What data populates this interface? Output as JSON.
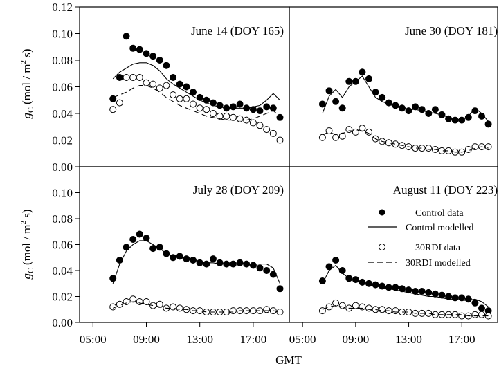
{
  "figure": {
    "xlabel": "GMT",
    "ylabel_var": "g",
    "ylabel_sub": "C",
    "ylabel_unit_pre": "(mol / m",
    "ylabel_unit_sup": "2",
    "ylabel_unit_post": " s)"
  },
  "legend": {
    "control_data": "Control data",
    "control_modelled": "Control modelled",
    "rdi_data": "30RDI data",
    "rdi_modelled": "30RDI modelled"
  },
  "chart_data": [
    {
      "type": "scatter",
      "title": "June 14 (DOY 165)",
      "x_unit": "hour GMT",
      "xlim": [
        4.0,
        19.7
      ],
      "ylim": [
        0,
        0.12
      ],
      "yticks": [
        "0.00",
        "0.02",
        "0.04",
        "0.06",
        "0.08",
        "0.10",
        "0.12"
      ],
      "series": [
        {
          "name": "Control data",
          "x": [
            6.5,
            7.0,
            7.5,
            8.0,
            8.5,
            9.0,
            9.5,
            10.0,
            10.5,
            11.0,
            11.5,
            12.0,
            12.5,
            13.0,
            13.5,
            14.0,
            14.5,
            15.0,
            15.5,
            16.0,
            16.5,
            17.0,
            17.5,
            18.0,
            18.5,
            19.0
          ],
          "y": [
            0.051,
            0.067,
            0.098,
            0.089,
            0.088,
            0.085,
            0.083,
            0.08,
            0.076,
            0.067,
            0.062,
            0.06,
            0.056,
            0.052,
            0.05,
            0.048,
            0.046,
            0.044,
            0.045,
            0.047,
            0.044,
            0.043,
            0.042,
            0.045,
            0.044,
            0.037
          ]
        },
        {
          "name": "Control modelled",
          "x": [
            6.5,
            7.0,
            7.5,
            8.0,
            8.5,
            9.0,
            9.5,
            10.0,
            10.5,
            11.0,
            11.5,
            12.0,
            12.5,
            13.0,
            13.5,
            14.0,
            14.5,
            15.0,
            15.5,
            16.0,
            16.5,
            17.0,
            17.5,
            18.0,
            18.5,
            19.0
          ],
          "y": [
            0.066,
            0.071,
            0.074,
            0.077,
            0.078,
            0.078,
            0.076,
            0.072,
            0.066,
            0.062,
            0.059,
            0.056,
            0.053,
            0.05,
            0.048,
            0.046,
            0.045,
            0.044,
            0.044,
            0.044,
            0.044,
            0.045,
            0.046,
            0.05,
            0.055,
            0.05
          ]
        },
        {
          "name": "30RDI data",
          "x": [
            6.5,
            7.0,
            7.5,
            8.0,
            8.5,
            9.0,
            9.5,
            10.0,
            10.5,
            11.0,
            11.5,
            12.0,
            12.5,
            13.0,
            13.5,
            14.0,
            14.5,
            15.0,
            15.5,
            16.0,
            16.5,
            17.0,
            17.5,
            18.0,
            18.5,
            19.0
          ],
          "y": [
            0.043,
            0.048,
            0.067,
            0.067,
            0.067,
            0.063,
            0.062,
            0.059,
            0.061,
            0.054,
            0.051,
            0.051,
            0.047,
            0.044,
            0.043,
            0.04,
            0.038,
            0.038,
            0.037,
            0.036,
            0.035,
            0.033,
            0.031,
            0.028,
            0.025,
            0.02
          ]
        },
        {
          "name": "30RDI modelled",
          "x": [
            6.5,
            7.0,
            7.5,
            8.0,
            8.5,
            9.0,
            9.5,
            10.0,
            10.5,
            11.0,
            11.5,
            12.0,
            12.5,
            13.0,
            13.5,
            14.0,
            14.5,
            15.0,
            15.5,
            16.0,
            16.5,
            17.0,
            17.5,
            18.0,
            18.5,
            19.0
          ],
          "y": [
            0.052,
            0.054,
            0.056,
            0.059,
            0.061,
            0.061,
            0.059,
            0.056,
            0.052,
            0.049,
            0.046,
            0.044,
            0.042,
            0.04,
            0.038,
            0.037,
            0.036,
            0.035,
            0.035,
            0.035,
            0.035,
            0.036,
            0.038,
            0.04,
            0.042,
            0.038
          ]
        }
      ]
    },
    {
      "type": "scatter",
      "title": "June 30 (DOY 181)",
      "x_unit": "hour GMT",
      "xlim": [
        4.0,
        19.7
      ],
      "ylim": [
        0,
        0.12
      ],
      "series": [
        {
          "name": "Control data",
          "x": [
            6.5,
            7.0,
            7.5,
            8.0,
            8.5,
            9.0,
            9.5,
            10.0,
            10.5,
            11.0,
            11.5,
            12.0,
            12.5,
            13.0,
            13.5,
            14.0,
            14.5,
            15.0,
            15.5,
            16.0,
            16.5,
            17.0,
            17.5,
            18.0,
            18.5,
            19.0
          ],
          "y": [
            0.047,
            0.057,
            0.049,
            0.044,
            0.064,
            0.064,
            0.071,
            0.066,
            0.056,
            0.052,
            0.048,
            0.046,
            0.044,
            0.042,
            0.045,
            0.043,
            0.04,
            0.043,
            0.039,
            0.036,
            0.035,
            0.035,
            0.037,
            0.042,
            0.038,
            0.032
          ]
        },
        {
          "name": "Control modelled",
          "x": [
            6.5,
            7.0,
            7.5,
            8.0,
            8.5,
            9.0,
            9.5,
            10.0,
            10.5,
            11.0,
            11.5,
            12.0,
            12.5,
            13.0,
            13.5,
            14.0,
            14.5,
            15.0,
            15.5,
            16.0,
            16.5,
            17.0,
            17.5,
            18.0,
            18.5,
            19.0
          ],
          "y": [
            0.04,
            0.053,
            0.058,
            0.052,
            0.06,
            0.064,
            0.068,
            0.06,
            0.052,
            0.049,
            0.047,
            0.045,
            0.044,
            0.043,
            0.043,
            0.042,
            0.041,
            0.04,
            0.039,
            0.037,
            0.036,
            0.035,
            0.038,
            0.044,
            0.04,
            0.034
          ]
        },
        {
          "name": "30RDI data",
          "x": [
            6.5,
            7.0,
            7.5,
            8.0,
            8.5,
            9.0,
            9.5,
            10.0,
            10.5,
            11.0,
            11.5,
            12.0,
            12.5,
            13.0,
            13.5,
            14.0,
            14.5,
            15.0,
            15.5,
            16.0,
            16.5,
            17.0,
            17.5,
            18.0,
            18.5,
            19.0
          ],
          "y": [
            0.022,
            0.027,
            0.022,
            0.023,
            0.028,
            0.026,
            0.029,
            0.026,
            0.021,
            0.019,
            0.018,
            0.017,
            0.016,
            0.015,
            0.014,
            0.014,
            0.014,
            0.013,
            0.012,
            0.012,
            0.011,
            0.011,
            0.013,
            0.015,
            0.015,
            0.015
          ]
        },
        {
          "name": "30RDI modelled",
          "x": [
            6.5,
            7.0,
            7.5,
            8.0,
            8.5,
            9.0,
            9.5,
            10.0,
            10.5,
            11.0,
            11.5,
            12.0,
            12.5,
            13.0,
            13.5,
            14.0,
            14.5,
            15.0,
            15.5,
            16.0,
            16.5,
            17.0,
            17.5,
            18.0,
            18.5,
            19.0
          ],
          "y": [
            0.024,
            0.026,
            0.024,
            0.025,
            0.027,
            0.027,
            0.027,
            0.025,
            0.021,
            0.019,
            0.018,
            0.017,
            0.016,
            0.015,
            0.014,
            0.014,
            0.013,
            0.013,
            0.012,
            0.012,
            0.011,
            0.011,
            0.012,
            0.014,
            0.015,
            0.014
          ]
        }
      ]
    },
    {
      "type": "scatter",
      "title": "July 28 (DOY 209)",
      "x_unit": "hour GMT",
      "xlim": [
        4.0,
        19.7
      ],
      "ylim": [
        0,
        0.12
      ],
      "yticks": [
        "0.00",
        "0.02",
        "0.04",
        "0.06",
        "0.08",
        "0.10"
      ],
      "xticks": [
        "05:00",
        "09:00",
        "13:00",
        "17:00"
      ],
      "series": [
        {
          "name": "Control data",
          "x": [
            6.5,
            7.0,
            7.5,
            8.0,
            8.5,
            9.0,
            9.5,
            10.0,
            10.5,
            11.0,
            11.5,
            12.0,
            12.5,
            13.0,
            13.5,
            14.0,
            14.5,
            15.0,
            15.5,
            16.0,
            16.5,
            17.0,
            17.5,
            18.0,
            18.5,
            19.0
          ],
          "y": [
            0.034,
            0.048,
            0.058,
            0.064,
            0.068,
            0.065,
            0.057,
            0.058,
            0.053,
            0.05,
            0.051,
            0.049,
            0.048,
            0.046,
            0.045,
            0.049,
            0.046,
            0.045,
            0.045,
            0.046,
            0.045,
            0.044,
            0.042,
            0.04,
            0.037,
            0.026
          ]
        },
        {
          "name": "Control modelled",
          "x": [
            6.5,
            7.0,
            7.5,
            8.0,
            8.5,
            9.0,
            9.5,
            10.0,
            10.5,
            11.0,
            11.5,
            12.0,
            12.5,
            13.0,
            13.5,
            14.0,
            14.5,
            15.0,
            15.5,
            16.0,
            16.5,
            17.0,
            17.5,
            18.0,
            18.5,
            19.0
          ],
          "y": [
            0.03,
            0.045,
            0.055,
            0.06,
            0.063,
            0.063,
            0.06,
            0.057,
            0.053,
            0.051,
            0.05,
            0.049,
            0.048,
            0.047,
            0.046,
            0.046,
            0.045,
            0.045,
            0.045,
            0.045,
            0.045,
            0.045,
            0.045,
            0.045,
            0.042,
            0.03
          ]
        },
        {
          "name": "30RDI data",
          "x": [
            6.5,
            7.0,
            7.5,
            8.0,
            8.5,
            9.0,
            9.5,
            10.0,
            10.5,
            11.0,
            11.5,
            12.0,
            12.5,
            13.0,
            13.5,
            14.0,
            14.5,
            15.0,
            15.5,
            16.0,
            16.5,
            17.0,
            17.5,
            18.0,
            18.5,
            19.0
          ],
          "y": [
            0.012,
            0.014,
            0.016,
            0.018,
            0.016,
            0.016,
            0.013,
            0.014,
            0.011,
            0.012,
            0.011,
            0.01,
            0.009,
            0.009,
            0.008,
            0.008,
            0.008,
            0.008,
            0.009,
            0.009,
            0.009,
            0.009,
            0.009,
            0.01,
            0.009,
            0.008
          ]
        },
        {
          "name": "30RDI modelled",
          "x": [
            6.5,
            7.0,
            7.5,
            8.0,
            8.5,
            9.0,
            9.5,
            10.0,
            10.5,
            11.0,
            11.5,
            12.0,
            12.5,
            13.0,
            13.5,
            14.0,
            14.5,
            15.0,
            15.5,
            16.0,
            16.5,
            17.0,
            17.5,
            18.0,
            18.5,
            19.0
          ],
          "y": [
            0.011,
            0.013,
            0.015,
            0.016,
            0.015,
            0.014,
            0.013,
            0.012,
            0.011,
            0.011,
            0.01,
            0.01,
            0.009,
            0.009,
            0.008,
            0.008,
            0.008,
            0.008,
            0.008,
            0.009,
            0.009,
            0.009,
            0.009,
            0.009,
            0.009,
            0.008
          ]
        }
      ]
    },
    {
      "type": "scatter",
      "title": "August 11 (DOY 223)",
      "x_unit": "hour GMT",
      "xlim": [
        4.0,
        19.7
      ],
      "ylim": [
        0,
        0.12
      ],
      "xticks": [
        "05:00",
        "09:00",
        "13:00",
        "17:00"
      ],
      "series": [
        {
          "name": "Control data",
          "x": [
            6.5,
            7.0,
            7.5,
            8.0,
            8.5,
            9.0,
            9.5,
            10.0,
            10.5,
            11.0,
            11.5,
            12.0,
            12.5,
            13.0,
            13.5,
            14.0,
            14.5,
            15.0,
            15.5,
            16.0,
            16.5,
            17.0,
            17.5,
            18.0,
            18.5,
            19.0
          ],
          "y": [
            0.032,
            0.043,
            0.048,
            0.04,
            0.034,
            0.033,
            0.031,
            0.03,
            0.029,
            0.028,
            0.027,
            0.027,
            0.026,
            0.025,
            0.024,
            0.024,
            0.023,
            0.022,
            0.021,
            0.02,
            0.019,
            0.019,
            0.018,
            0.015,
            0.011,
            0.009
          ]
        },
        {
          "name": "Control modelled",
          "x": [
            6.5,
            7.0,
            7.5,
            8.0,
            8.5,
            9.0,
            9.5,
            10.0,
            10.5,
            11.0,
            11.5,
            12.0,
            12.5,
            13.0,
            13.5,
            14.0,
            14.5,
            15.0,
            15.5,
            16.0,
            16.5,
            17.0,
            17.5,
            18.0,
            18.5,
            19.0
          ],
          "y": [
            0.03,
            0.04,
            0.044,
            0.038,
            0.034,
            0.032,
            0.03,
            0.029,
            0.028,
            0.027,
            0.026,
            0.025,
            0.024,
            0.023,
            0.022,
            0.021,
            0.02,
            0.02,
            0.019,
            0.018,
            0.018,
            0.017,
            0.017,
            0.018,
            0.016,
            0.012
          ]
        },
        {
          "name": "30RDI data",
          "x": [
            6.5,
            7.0,
            7.5,
            8.0,
            8.5,
            9.0,
            9.5,
            10.0,
            10.5,
            11.0,
            11.5,
            12.0,
            12.5,
            13.0,
            13.5,
            14.0,
            14.5,
            15.0,
            15.5,
            16.0,
            16.5,
            17.0,
            17.5,
            18.0,
            18.5,
            19.0
          ],
          "y": [
            0.009,
            0.012,
            0.015,
            0.013,
            0.011,
            0.013,
            0.012,
            0.011,
            0.01,
            0.01,
            0.009,
            0.009,
            0.008,
            0.008,
            0.007,
            0.007,
            0.007,
            0.006,
            0.006,
            0.006,
            0.006,
            0.005,
            0.005,
            0.006,
            0.006,
            0.005
          ]
        },
        {
          "name": "30RDI modelled",
          "x": [
            6.5,
            7.0,
            7.5,
            8.0,
            8.5,
            9.0,
            9.5,
            10.0,
            10.5,
            11.0,
            11.5,
            12.0,
            12.5,
            13.0,
            13.5,
            14.0,
            14.5,
            15.0,
            15.5,
            16.0,
            16.5,
            17.0,
            17.5,
            18.0,
            18.5,
            19.0
          ],
          "y": [
            0.01,
            0.012,
            0.013,
            0.012,
            0.011,
            0.011,
            0.011,
            0.01,
            0.01,
            0.009,
            0.009,
            0.008,
            0.008,
            0.008,
            0.007,
            0.007,
            0.007,
            0.006,
            0.006,
            0.006,
            0.006,
            0.006,
            0.005,
            0.005,
            0.005,
            0.005
          ]
        }
      ]
    }
  ]
}
